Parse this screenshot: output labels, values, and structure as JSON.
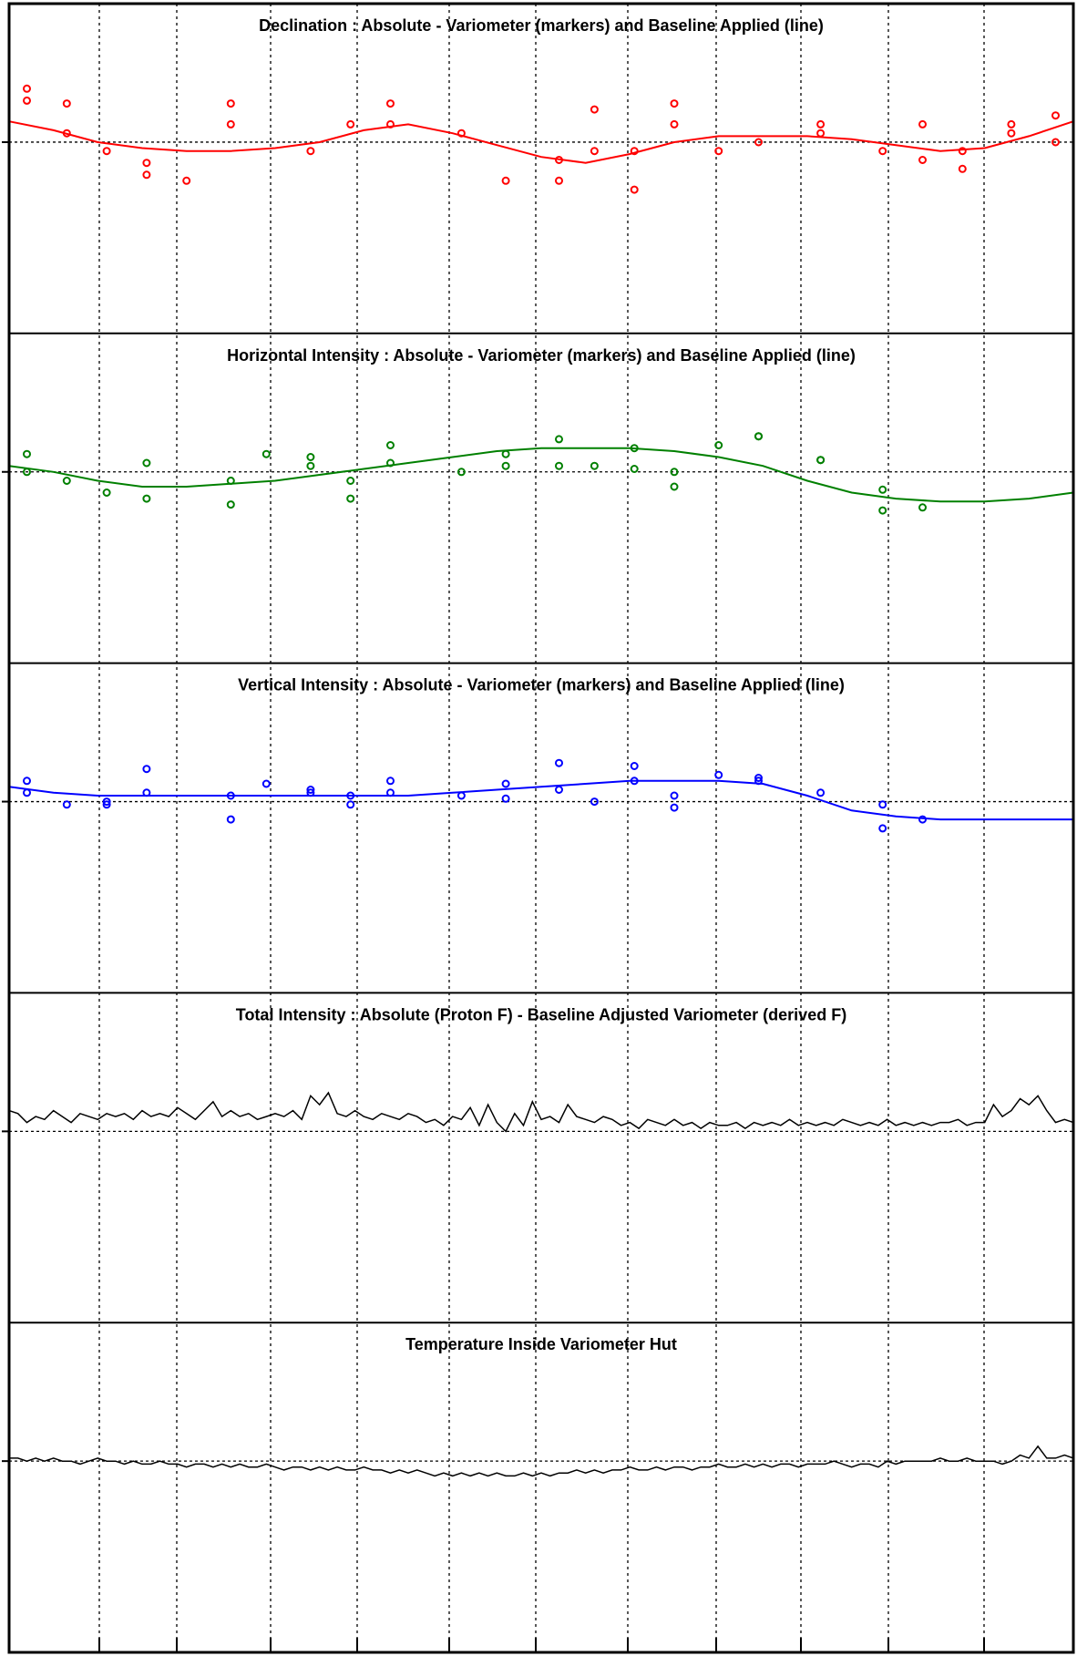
{
  "chart_data": [
    {
      "type": "scatter",
      "title": "Declination : Absolute - Variometer (markers) and Baseline Applied (line)",
      "color": "#ff0000",
      "xlim": [
        0,
        12
      ],
      "ylim": [
        -1,
        1
      ],
      "reference": 0,
      "points": [
        {
          "x": 0.2,
          "y": 0.14
        },
        {
          "x": 0.2,
          "y": 0.18
        },
        {
          "x": 0.65,
          "y": 0.13
        },
        {
          "x": 0.65,
          "y": 0.03
        },
        {
          "x": 1.1,
          "y": -0.03
        },
        {
          "x": 1.55,
          "y": -0.07
        },
        {
          "x": 1.55,
          "y": -0.11
        },
        {
          "x": 2.0,
          "y": -0.13
        },
        {
          "x": 2.5,
          "y": 0.13
        },
        {
          "x": 2.5,
          "y": 0.06
        },
        {
          "x": 3.4,
          "y": -0.03
        },
        {
          "x": 3.85,
          "y": 0.06
        },
        {
          "x": 4.3,
          "y": 0.13
        },
        {
          "x": 4.3,
          "y": 0.06
        },
        {
          "x": 5.1,
          "y": 0.03
        },
        {
          "x": 5.6,
          "y": -0.13
        },
        {
          "x": 6.2,
          "y": -0.06
        },
        {
          "x": 6.2,
          "y": -0.13
        },
        {
          "x": 6.6,
          "y": 0.11
        },
        {
          "x": 6.6,
          "y": -0.03
        },
        {
          "x": 7.05,
          "y": -0.03
        },
        {
          "x": 7.05,
          "y": -0.16
        },
        {
          "x": 7.5,
          "y": 0.13
        },
        {
          "x": 7.5,
          "y": 0.06
        },
        {
          "x": 8.0,
          "y": -0.03
        },
        {
          "x": 8.45,
          "y": 0.0
        },
        {
          "x": 9.15,
          "y": 0.06
        },
        {
          "x": 9.15,
          "y": 0.03
        },
        {
          "x": 9.85,
          "y": -0.03
        },
        {
          "x": 10.3,
          "y": 0.06
        },
        {
          "x": 10.3,
          "y": -0.06
        },
        {
          "x": 10.75,
          "y": -0.03
        },
        {
          "x": 10.75,
          "y": -0.09
        },
        {
          "x": 11.3,
          "y": 0.06
        },
        {
          "x": 11.3,
          "y": 0.03
        },
        {
          "x": 11.8,
          "y": 0.09
        },
        {
          "x": 11.8,
          "y": 0.0
        }
      ],
      "baseline": {
        "x": [
          0,
          0.5,
          1.0,
          1.5,
          2.0,
          2.5,
          3.0,
          3.5,
          4.0,
          4.5,
          5.0,
          5.5,
          6.0,
          6.5,
          7.0,
          7.5,
          8.0,
          8.5,
          9.0,
          9.5,
          10.0,
          10.5,
          11.0,
          11.5,
          12.0
        ],
        "y": [
          0.07,
          0.04,
          0.0,
          -0.02,
          -0.03,
          -0.03,
          -0.02,
          0.0,
          0.04,
          0.06,
          0.03,
          -0.01,
          -0.05,
          -0.07,
          -0.04,
          0.0,
          0.02,
          0.02,
          0.02,
          0.01,
          -0.01,
          -0.03,
          -0.02,
          0.02,
          0.07
        ]
      }
    },
    {
      "type": "scatter",
      "title": "Horizontal Intensity : Absolute - Variometer (markers) and Baseline Applied (line)",
      "color": "#008000",
      "xlim": [
        0,
        12
      ],
      "ylim": [
        -1,
        1
      ],
      "reference": 0,
      "points": [
        {
          "x": 0.2,
          "y": 0.06
        },
        {
          "x": 0.2,
          "y": 0.0
        },
        {
          "x": 0.65,
          "y": -0.03
        },
        {
          "x": 1.1,
          "y": -0.07
        },
        {
          "x": 1.55,
          "y": 0.03
        },
        {
          "x": 1.55,
          "y": -0.09
        },
        {
          "x": 2.5,
          "y": -0.03
        },
        {
          "x": 2.5,
          "y": -0.11
        },
        {
          "x": 2.9,
          "y": 0.06
        },
        {
          "x": 3.4,
          "y": 0.05
        },
        {
          "x": 3.4,
          "y": 0.02
        },
        {
          "x": 3.85,
          "y": -0.03
        },
        {
          "x": 3.85,
          "y": -0.09
        },
        {
          "x": 4.3,
          "y": 0.09
        },
        {
          "x": 4.3,
          "y": 0.03
        },
        {
          "x": 5.1,
          "y": 0.0
        },
        {
          "x": 5.6,
          "y": 0.06
        },
        {
          "x": 5.6,
          "y": 0.02
        },
        {
          "x": 6.2,
          "y": 0.11
        },
        {
          "x": 6.2,
          "y": 0.02
        },
        {
          "x": 6.6,
          "y": 0.02
        },
        {
          "x": 7.05,
          "y": 0.08
        },
        {
          "x": 7.05,
          "y": 0.01
        },
        {
          "x": 7.5,
          "y": 0.0
        },
        {
          "x": 7.5,
          "y": -0.05
        },
        {
          "x": 8.0,
          "y": 0.09
        },
        {
          "x": 8.45,
          "y": 0.12
        },
        {
          "x": 8.45,
          "y": 0.12
        },
        {
          "x": 9.15,
          "y": 0.04
        },
        {
          "x": 9.15,
          "y": 0.04
        },
        {
          "x": 9.85,
          "y": -0.06
        },
        {
          "x": 9.85,
          "y": -0.13
        },
        {
          "x": 10.3,
          "y": -0.12
        }
      ],
      "baseline": {
        "x": [
          0,
          0.5,
          1.0,
          1.5,
          2.0,
          2.5,
          3.0,
          3.5,
          4.0,
          4.5,
          5.0,
          5.5,
          6.0,
          6.5,
          7.0,
          7.5,
          8.0,
          8.5,
          9.0,
          9.5,
          10.0,
          10.5,
          11.0,
          11.5,
          12.0
        ],
        "y": [
          0.02,
          0.0,
          -0.03,
          -0.05,
          -0.05,
          -0.04,
          -0.03,
          -0.01,
          0.01,
          0.03,
          0.05,
          0.07,
          0.08,
          0.08,
          0.08,
          0.07,
          0.05,
          0.02,
          -0.03,
          -0.07,
          -0.09,
          -0.1,
          -0.1,
          -0.09,
          -0.07
        ]
      }
    },
    {
      "type": "scatter",
      "title": "Vertical Intensity : Absolute - Variometer (markers) and Baseline Applied (line)",
      "color": "#0000ff",
      "xlim": [
        0,
        12
      ],
      "ylim": [
        -1,
        1
      ],
      "reference": 0,
      "points": [
        {
          "x": 0.2,
          "y": 0.07
        },
        {
          "x": 0.2,
          "y": 0.03
        },
        {
          "x": 0.65,
          "y": -0.01
        },
        {
          "x": 1.1,
          "y": 0.0
        },
        {
          "x": 1.1,
          "y": -0.01
        },
        {
          "x": 1.55,
          "y": 0.11
        },
        {
          "x": 1.55,
          "y": 0.03
        },
        {
          "x": 2.5,
          "y": 0.02
        },
        {
          "x": 2.5,
          "y": -0.06
        },
        {
          "x": 2.9,
          "y": 0.06
        },
        {
          "x": 3.4,
          "y": 0.04
        },
        {
          "x": 3.4,
          "y": 0.03
        },
        {
          "x": 3.85,
          "y": 0.02
        },
        {
          "x": 3.85,
          "y": -0.01
        },
        {
          "x": 4.3,
          "y": 0.07
        },
        {
          "x": 4.3,
          "y": 0.03
        },
        {
          "x": 5.1,
          "y": 0.02
        },
        {
          "x": 5.6,
          "y": 0.06
        },
        {
          "x": 5.6,
          "y": 0.01
        },
        {
          "x": 6.2,
          "y": 0.13
        },
        {
          "x": 6.2,
          "y": 0.04
        },
        {
          "x": 6.6,
          "y": 0.0
        },
        {
          "x": 7.05,
          "y": 0.12
        },
        {
          "x": 7.05,
          "y": 0.07
        },
        {
          "x": 7.5,
          "y": 0.02
        },
        {
          "x": 7.5,
          "y": -0.02
        },
        {
          "x": 8.0,
          "y": 0.09
        },
        {
          "x": 8.45,
          "y": 0.08
        },
        {
          "x": 8.45,
          "y": 0.07
        },
        {
          "x": 9.15,
          "y": 0.03
        },
        {
          "x": 9.85,
          "y": -0.01
        },
        {
          "x": 9.85,
          "y": -0.09
        },
        {
          "x": 10.3,
          "y": -0.06
        }
      ],
      "baseline": {
        "x": [
          0,
          0.5,
          1.0,
          1.5,
          2.0,
          2.5,
          3.0,
          3.5,
          4.0,
          4.5,
          5.0,
          5.5,
          6.0,
          6.5,
          7.0,
          7.5,
          8.0,
          8.5,
          9.0,
          9.5,
          10.0,
          10.5,
          11.0,
          11.5,
          12.0
        ],
        "y": [
          0.05,
          0.03,
          0.02,
          0.02,
          0.02,
          0.02,
          0.02,
          0.02,
          0.02,
          0.02,
          0.03,
          0.04,
          0.05,
          0.06,
          0.07,
          0.07,
          0.07,
          0.06,
          0.02,
          -0.03,
          -0.05,
          -0.06,
          -0.06,
          -0.06,
          -0.06
        ]
      }
    },
    {
      "type": "line",
      "title": "Total Intensity : Absolute (Proton F) - Baseline Adjusted Variometer (derived F)",
      "color": "#000000",
      "xlim": [
        0,
        12
      ],
      "ylim": [
        -1,
        1
      ],
      "reference": 0,
      "x": [
        0.0,
        0.1,
        0.2,
        0.3,
        0.4,
        0.5,
        0.6,
        0.7,
        0.8,
        0.9,
        1.0,
        1.1,
        1.2,
        1.3,
        1.4,
        1.5,
        1.6,
        1.7,
        1.8,
        1.9,
        2.0,
        2.1,
        2.2,
        2.3,
        2.4,
        2.5,
        2.6,
        2.7,
        2.8,
        2.9,
        3.0,
        3.1,
        3.2,
        3.3,
        3.4,
        3.5,
        3.6,
        3.7,
        3.8,
        3.9,
        4.0,
        4.1,
        4.2,
        4.3,
        4.4,
        4.5,
        4.6,
        4.7,
        4.8,
        4.9,
        5.0,
        5.1,
        5.2,
        5.3,
        5.4,
        5.5,
        5.6,
        5.7,
        5.8,
        5.9,
        6.0,
        6.1,
        6.2,
        6.3,
        6.4,
        6.5,
        6.6,
        6.7,
        6.8,
        6.9,
        7.0,
        7.1,
        7.2,
        7.3,
        7.4,
        7.5,
        7.6,
        7.7,
        7.8,
        7.9,
        8.0,
        8.1,
        8.2,
        8.3,
        8.4,
        8.5,
        8.6,
        8.7,
        8.8,
        8.9,
        9.0,
        9.1,
        9.2,
        9.3,
        9.4,
        9.5,
        9.6,
        9.7,
        9.8,
        9.9,
        10.0,
        10.1,
        10.2,
        10.3,
        10.4,
        10.5,
        10.6,
        10.7,
        10.8,
        10.9,
        11.0,
        11.1,
        11.2,
        11.3,
        11.4,
        11.5,
        11.6,
        11.7,
        11.8,
        11.9,
        12.0
      ],
      "y": [
        0.07,
        0.06,
        0.03,
        0.05,
        0.04,
        0.07,
        0.05,
        0.03,
        0.06,
        0.05,
        0.04,
        0.06,
        0.05,
        0.06,
        0.04,
        0.07,
        0.05,
        0.06,
        0.05,
        0.08,
        0.06,
        0.04,
        0.07,
        0.1,
        0.05,
        0.07,
        0.05,
        0.06,
        0.04,
        0.05,
        0.06,
        0.05,
        0.07,
        0.04,
        0.12,
        0.09,
        0.13,
        0.06,
        0.05,
        0.07,
        0.05,
        0.04,
        0.06,
        0.05,
        0.04,
        0.06,
        0.05,
        0.03,
        0.04,
        0.02,
        0.05,
        0.04,
        0.08,
        0.02,
        0.09,
        0.03,
        0.0,
        0.06,
        0.02,
        0.1,
        0.04,
        0.05,
        0.03,
        0.09,
        0.05,
        0.04,
        0.03,
        0.05,
        0.04,
        0.02,
        0.03,
        0.01,
        0.04,
        0.03,
        0.02,
        0.04,
        0.02,
        0.03,
        0.01,
        0.03,
        0.02,
        0.02,
        0.03,
        0.01,
        0.03,
        0.02,
        0.03,
        0.02,
        0.04,
        0.02,
        0.03,
        0.02,
        0.03,
        0.02,
        0.04,
        0.03,
        0.02,
        0.03,
        0.02,
        0.04,
        0.02,
        0.03,
        0.02,
        0.03,
        0.02,
        0.03,
        0.03,
        0.04,
        0.02,
        0.03,
        0.03,
        0.09,
        0.05,
        0.07,
        0.11,
        0.09,
        0.12,
        0.07,
        0.03,
        0.04,
        0.03
      ]
    },
    {
      "type": "line",
      "title": "Temperature Inside Variometer Hut",
      "color": "#000000",
      "xlim": [
        0,
        12
      ],
      "ylim": [
        -1,
        1
      ],
      "reference": 0,
      "x": [
        0.0,
        0.1,
        0.2,
        0.3,
        0.4,
        0.5,
        0.6,
        0.7,
        0.8,
        0.9,
        1.0,
        1.1,
        1.2,
        1.3,
        1.4,
        1.5,
        1.6,
        1.7,
        1.8,
        1.9,
        2.0,
        2.1,
        2.2,
        2.3,
        2.4,
        2.5,
        2.6,
        2.7,
        2.8,
        2.9,
        3.0,
        3.1,
        3.2,
        3.3,
        3.4,
        3.5,
        3.6,
        3.7,
        3.8,
        3.9,
        4.0,
        4.1,
        4.2,
        4.3,
        4.4,
        4.5,
        4.6,
        4.7,
        4.8,
        4.9,
        5.0,
        5.1,
        5.2,
        5.3,
        5.4,
        5.5,
        5.6,
        5.7,
        5.8,
        5.9,
        6.0,
        6.1,
        6.2,
        6.3,
        6.4,
        6.5,
        6.6,
        6.7,
        6.8,
        6.9,
        7.0,
        7.1,
        7.2,
        7.3,
        7.4,
        7.5,
        7.6,
        7.7,
        7.8,
        7.9,
        8.0,
        8.1,
        8.2,
        8.3,
        8.4,
        8.5,
        8.6,
        8.7,
        8.8,
        8.9,
        9.0,
        9.1,
        9.2,
        9.3,
        9.4,
        9.5,
        9.6,
        9.7,
        9.8,
        9.9,
        10.0,
        10.1,
        10.2,
        10.3,
        10.4,
        10.5,
        10.6,
        10.7,
        10.8,
        10.9,
        11.0,
        11.1,
        11.2,
        11.3,
        11.4,
        11.5,
        11.6,
        11.7,
        11.8,
        11.9,
        12.0
      ],
      "y": [
        0.01,
        0.01,
        0.0,
        0.01,
        0.0,
        0.01,
        0.0,
        0.0,
        -0.01,
        0.0,
        0.01,
        0.0,
        0.0,
        -0.01,
        0.0,
        -0.01,
        -0.01,
        0.0,
        -0.01,
        -0.01,
        -0.02,
        -0.01,
        -0.01,
        -0.02,
        -0.01,
        -0.02,
        -0.01,
        -0.02,
        -0.02,
        -0.01,
        -0.02,
        -0.03,
        -0.02,
        -0.02,
        -0.03,
        -0.02,
        -0.03,
        -0.02,
        -0.03,
        -0.03,
        -0.02,
        -0.03,
        -0.03,
        -0.04,
        -0.03,
        -0.04,
        -0.03,
        -0.04,
        -0.05,
        -0.04,
        -0.05,
        -0.04,
        -0.05,
        -0.04,
        -0.05,
        -0.04,
        -0.05,
        -0.05,
        -0.04,
        -0.05,
        -0.04,
        -0.05,
        -0.04,
        -0.04,
        -0.03,
        -0.04,
        -0.03,
        -0.04,
        -0.03,
        -0.03,
        -0.02,
        -0.03,
        -0.03,
        -0.02,
        -0.03,
        -0.02,
        -0.02,
        -0.03,
        -0.02,
        -0.02,
        -0.01,
        -0.02,
        -0.02,
        -0.01,
        -0.02,
        -0.01,
        -0.02,
        -0.01,
        -0.01,
        -0.02,
        -0.01,
        -0.01,
        -0.01,
        0.0,
        -0.01,
        -0.02,
        -0.01,
        -0.01,
        -0.02,
        0.0,
        -0.01,
        0.0,
        0.0,
        0.0,
        0.0,
        0.01,
        0.0,
        0.0,
        0.01,
        0.0,
        0.0,
        0.0,
        -0.01,
        0.0,
        0.02,
        0.01,
        0.05,
        0.01,
        0.01,
        0.02,
        0.01
      ]
    }
  ]
}
